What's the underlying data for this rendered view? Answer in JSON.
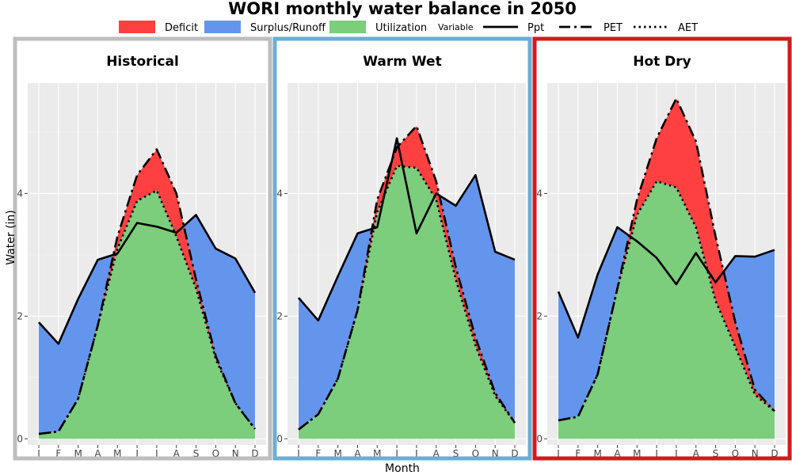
{
  "title": "WORI monthly water balance in 2050",
  "legend": {
    "fill_items": [
      {
        "label": "Deficit",
        "color": "#ff4040"
      },
      {
        "label": "Surplus/Runoff",
        "color": "#6495ed"
      },
      {
        "label": "Utilization",
        "color": "#7ccd7c"
      }
    ],
    "line_title": "Variable",
    "line_items": [
      {
        "label": "Ppt",
        "dash": "solid"
      },
      {
        "label": "PET",
        "dash": "longdash"
      },
      {
        "label": "AET",
        "dash": "dotted"
      }
    ]
  },
  "chart_data": {
    "type": "area",
    "title": "WORI monthly water balance in 2050",
    "xlabel": "Month",
    "ylabel": "Water (in)",
    "categories": [
      "J",
      "F",
      "M",
      "A",
      "M",
      "J",
      "J",
      "A",
      "S",
      "O",
      "N",
      "D"
    ],
    "y_ticks": [
      0,
      2,
      4
    ],
    "ylim": [
      -0.1,
      5.8
    ],
    "grid": true,
    "legend_position": "top",
    "panels": [
      {
        "name": "Historical",
        "border_color": "#bebebe",
        "ppt": [
          1.9,
          1.55,
          2.28,
          2.92,
          3.02,
          3.52,
          3.46,
          3.36,
          3.65,
          3.1,
          2.94,
          2.38
        ],
        "pet": [
          0.08,
          0.12,
          0.65,
          1.85,
          3.3,
          4.3,
          4.72,
          4.0,
          2.6,
          1.35,
          0.58,
          0.16
        ],
        "aet": [
          0.08,
          0.12,
          0.65,
          1.85,
          3.1,
          3.88,
          4.05,
          3.3,
          2.45,
          1.3,
          0.58,
          0.16
        ]
      },
      {
        "name": "Warm Wet",
        "border_color": "#6baed6",
        "ppt": [
          2.3,
          1.93,
          2.65,
          3.35,
          3.45,
          4.9,
          3.35,
          4.0,
          3.8,
          4.3,
          3.05,
          2.92
        ],
        "pet": [
          0.15,
          0.4,
          0.98,
          2.1,
          3.9,
          4.75,
          5.1,
          4.2,
          2.8,
          1.65,
          0.75,
          0.26
        ],
        "aet": [
          0.15,
          0.4,
          0.98,
          2.1,
          3.7,
          4.45,
          4.42,
          3.9,
          2.6,
          1.52,
          0.7,
          0.26
        ]
      },
      {
        "name": "Hot Dry",
        "border_color": "#d7191c",
        "ppt": [
          2.4,
          1.65,
          2.68,
          3.45,
          3.22,
          2.95,
          2.52,
          3.03,
          2.55,
          2.98,
          2.97,
          3.08
        ],
        "pet": [
          0.3,
          0.36,
          1.05,
          2.45,
          3.9,
          4.9,
          5.55,
          4.85,
          3.3,
          1.9,
          0.8,
          0.45
        ],
        "aet": [
          0.3,
          0.36,
          1.05,
          2.45,
          3.65,
          4.2,
          4.1,
          3.45,
          2.25,
          1.5,
          0.72,
          0.45
        ]
      }
    ]
  }
}
